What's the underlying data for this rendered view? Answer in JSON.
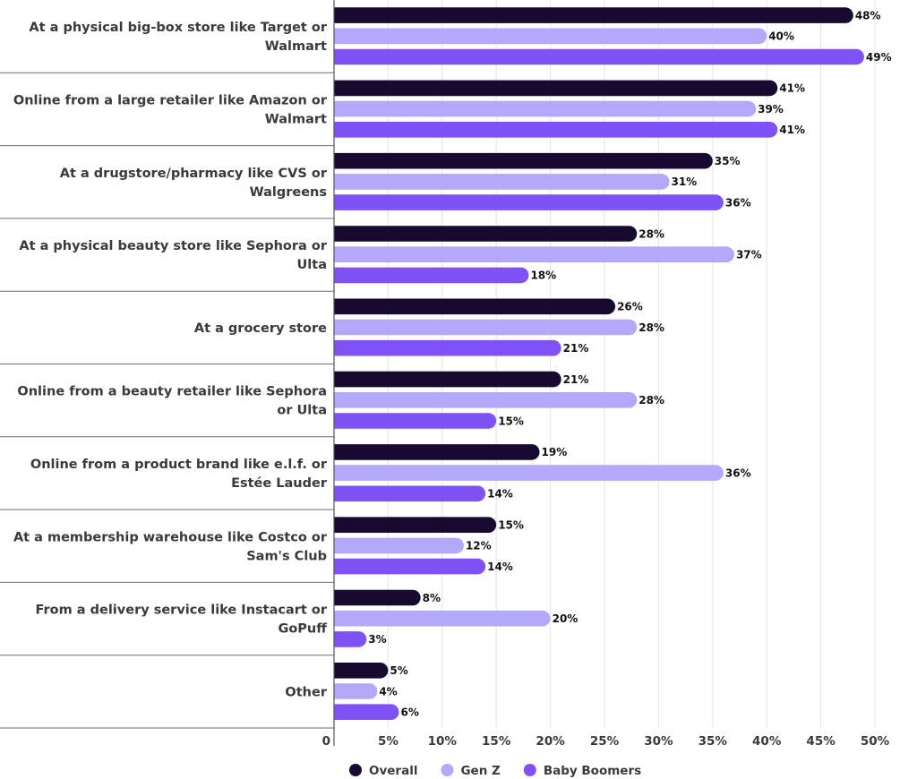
{
  "chart_data": {
    "type": "bar",
    "orientation": "horizontal",
    "categories": [
      "At a physical big-box store like Target or Walmart",
      "Online from a large retailer like Amazon or Walmart",
      "At a drugstore/pharmacy like CVS or Walgreens",
      "At a physical beauty store like Sephora or Ulta",
      "At a grocery store",
      "Online from a beauty retailer like Sephora or Ulta",
      "Online from a product brand like e.l.f. or Estée Lauder",
      "At a membership warehouse like Costco or Sam's Club",
      "From a delivery service like Instacart or GoPuff",
      "Other"
    ],
    "series": [
      {
        "name": "Overall",
        "color": "#17092f",
        "values": [
          48,
          41,
          35,
          28,
          26,
          21,
          19,
          15,
          8,
          5
        ]
      },
      {
        "name": "Gen Z",
        "color": "#b4a8fb",
        "values": [
          40,
          39,
          31,
          37,
          28,
          28,
          36,
          12,
          20,
          4
        ]
      },
      {
        "name": "Baby Boomers",
        "color": "#7f52f5",
        "values": [
          49,
          41,
          36,
          18,
          21,
          15,
          14,
          14,
          3,
          6
        ]
      }
    ],
    "value_suffix": "%",
    "xlim": [
      0,
      50
    ],
    "ticks": [
      "0",
      "5%",
      "10%",
      "15%",
      "20%",
      "25%",
      "30%",
      "35%",
      "40%",
      "45%",
      "50%"
    ],
    "grid": true,
    "legend": "bottom-center",
    "title": "",
    "xlabel": "",
    "ylabel": ""
  }
}
